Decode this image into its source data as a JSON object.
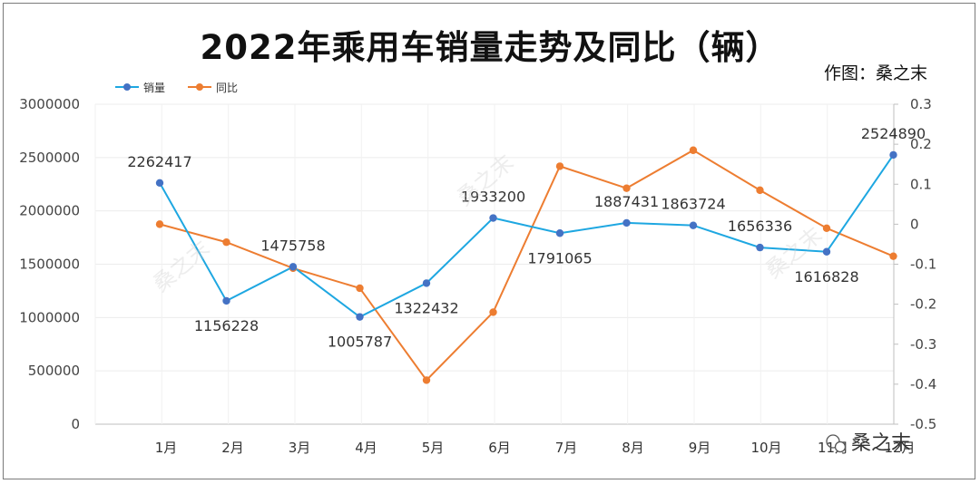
{
  "chart_data": {
    "type": "line",
    "title": "2022年乘用车销量走势及同比（辆）",
    "author_credit": "作图：桑之末",
    "watermark": "桑之末",
    "categories": [
      "1月",
      "2月",
      "3月",
      "4月",
      "5月",
      "6月",
      "7月",
      "8月",
      "9月",
      "10月",
      "11月",
      "12月"
    ],
    "series": [
      {
        "name": "销量",
        "axis": "left",
        "color": "#1ea7e1",
        "marker_color": "#4472c4",
        "values": [
          2262417,
          1156228,
          1475758,
          1005787,
          1322432,
          1933200,
          1791065,
          1887431,
          1863724,
          1656336,
          1616828,
          2524890
        ],
        "data_labels": [
          "2262417",
          "1156228",
          "1475758",
          "1005787",
          "1322432",
          "1933200",
          "1791065",
          "1887431",
          "1863724",
          "1656336",
          "1616828",
          "2524890"
        ]
      },
      {
        "name": "同比",
        "axis": "right",
        "color": "#ed7d31",
        "marker_color": "#ed7d31",
        "values": [
          0.0,
          -0.045,
          -0.11,
          -0.16,
          -0.39,
          -0.22,
          0.145,
          0.09,
          0.185,
          0.085,
          -0.01,
          -0.08
        ]
      }
    ],
    "y_left": {
      "min": 0,
      "max": 3000000,
      "ticks": [
        "0",
        "500000",
        "1000000",
        "1500000",
        "2000000",
        "2500000",
        "3000000"
      ]
    },
    "y_right": {
      "min": -0.5,
      "max": 0.3,
      "ticks": [
        "-0.5",
        "-0.4",
        "-0.3",
        "-0.2",
        "-0.1",
        "0",
        "0.1",
        "0.2",
        "0.3"
      ]
    },
    "grid": true,
    "legend_position": "top-left"
  }
}
